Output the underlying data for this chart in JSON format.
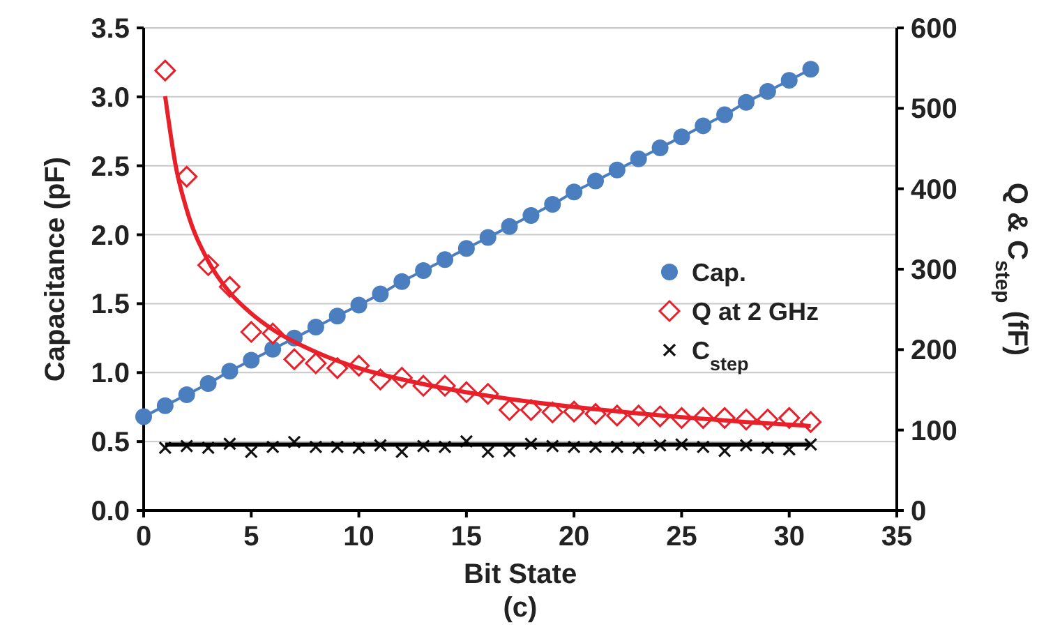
{
  "chart_data": {
    "type": "scatter",
    "xlabel": "Bit State",
    "ylabel": "Capacitance (pF)",
    "y2label": "Q & C$_{step}$ (fF)",
    "annotations": [
      "(c)"
    ],
    "x": [
      0,
      1,
      2,
      3,
      4,
      5,
      6,
      7,
      8,
      9,
      10,
      11,
      12,
      13,
      14,
      15,
      16,
      17,
      18,
      19,
      20,
      21,
      22,
      23,
      24,
      25,
      26,
      27,
      28,
      29,
      30,
      31
    ],
    "xlim": [
      0,
      35
    ],
    "xticks": [
      0,
      5,
      10,
      15,
      20,
      25,
      30,
      35
    ],
    "ylim": [
      0,
      3.5
    ],
    "yticks": [
      {
        "value": 0,
        "label": "0.0"
      },
      {
        "value": 0.5,
        "label": "0.5"
      },
      {
        "value": 1,
        "label": "1.0"
      },
      {
        "value": 1.5,
        "label": "1.5"
      },
      {
        "value": 2,
        "label": "2.0"
      },
      {
        "value": 2.5,
        "label": "2.5"
      },
      {
        "value": 3,
        "label": "3.0"
      },
      {
        "value": 3.5,
        "label": "3.5"
      }
    ],
    "y2lim": [
      0,
      600
    ],
    "y2ticks": [
      0,
      100,
      200,
      300,
      400,
      500,
      600
    ],
    "grid": "y",
    "legend": "right",
    "series": [
      {
        "name": "Cap.",
        "type": "line",
        "marker": "circle",
        "color": "#4a7ebf",
        "values": [
          0.68,
          0.76,
          0.84,
          0.92,
          1.01,
          1.09,
          1.17,
          1.25,
          1.33,
          1.41,
          1.49,
          1.57,
          1.66,
          1.74,
          1.82,
          1.9,
          1.98,
          2.06,
          2.14,
          2.22,
          2.31,
          2.39,
          2.47,
          2.55,
          2.63,
          2.71,
          2.79,
          2.87,
          2.96,
          3.04,
          3.12,
          3.2
        ]
      },
      {
        "name": "Q at 2 GHz",
        "marker": "diamond",
        "axis": "y2",
        "color": "#e8202a",
        "x": [
          1,
          2,
          3,
          4,
          5,
          6,
          7,
          8,
          9,
          10,
          11,
          12,
          13,
          14,
          15,
          16,
          17,
          18,
          19,
          20,
          21,
          22,
          23,
          24,
          25,
          26,
          27,
          28,
          29,
          30,
          31
        ],
        "values": [
          547,
          415,
          305,
          278,
          222,
          220,
          188,
          183,
          177,
          180,
          163,
          165,
          155,
          155,
          147,
          145,
          125,
          125,
          122,
          123,
          120,
          118,
          118,
          117,
          115,
          115,
          115,
          113,
          113,
          115,
          110
        ]
      },
      {
        "name": "C$_{step}$",
        "marker": "cross",
        "axis": "y2",
        "color": "#111111",
        "x": [
          1,
          2,
          3,
          4,
          5,
          6,
          7,
          8,
          9,
          10,
          11,
          12,
          13,
          14,
          15,
          16,
          17,
          18,
          19,
          20,
          21,
          22,
          23,
          24,
          25,
          26,
          27,
          28,
          29,
          30,
          31
        ],
        "values": [
          78,
          80,
          78,
          83,
          73,
          79,
          85,
          79,
          79,
          78,
          81,
          73,
          80,
          79,
          86,
          73,
          74,
          83,
          80,
          79,
          79,
          79,
          78,
          81,
          82,
          79,
          74,
          81,
          78,
          76,
          82
        ]
      },
      {
        "type": "line",
        "marker": "none",
        "axis": "y2",
        "color": "#e8202a",
        "x": [
          1,
          1.5,
          2,
          3,
          4,
          5,
          6,
          8,
          10,
          12,
          15,
          18,
          21,
          25,
          28,
          31
        ],
        "values": [
          515,
          427,
          374,
          310,
          271,
          245,
          225,
          197,
          177,
          163,
          147,
          135,
          126,
          116,
          110,
          105
        ]
      },
      {
        "type": "line",
        "marker": "none",
        "axis": "y2",
        "color": "#000000",
        "x": [
          1,
          31
        ],
        "values": [
          82,
          82
        ]
      }
    ]
  }
}
